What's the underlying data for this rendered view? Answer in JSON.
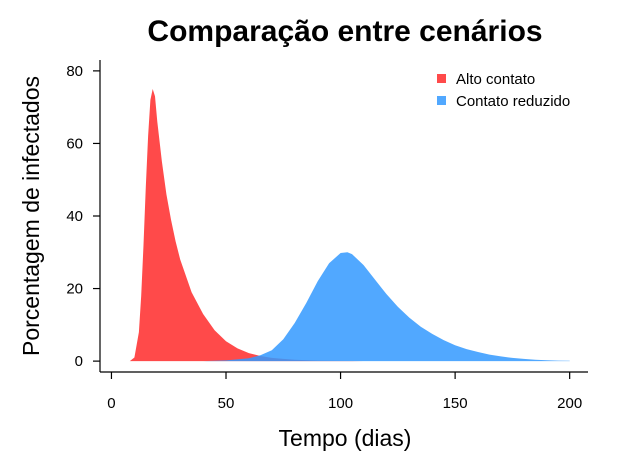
{
  "chart_data": {
    "type": "area",
    "title": "Comparação entre cenários",
    "xlabel": "Tempo (dias)",
    "ylabel": "Porcentagem de infectados",
    "xlim": [
      -5,
      208
    ],
    "ylim": [
      -3,
      83
    ],
    "xticks": [
      0,
      50,
      100,
      150,
      200
    ],
    "yticks": [
      0,
      20,
      40,
      60,
      80
    ],
    "legend_position": "top-right",
    "grid": false,
    "series": [
      {
        "name": "Alto contato",
        "color": "#ff2a2a",
        "opacity": 0.85,
        "x": [
          8,
          10,
          12,
          13,
          14,
          15,
          16,
          17,
          18,
          19,
          20,
          22,
          24,
          26,
          28,
          30,
          35,
          40,
          45,
          50,
          55,
          60,
          65,
          70,
          75,
          80,
          90,
          100,
          110
        ],
        "y": [
          0,
          1,
          8,
          18,
          32,
          48,
          62,
          72,
          75,
          73,
          66,
          55,
          46,
          39,
          33,
          28,
          19,
          13,
          8.5,
          5.5,
          3.5,
          2.2,
          1.4,
          0.9,
          0.6,
          0.4,
          0.15,
          0.05,
          0
        ]
      },
      {
        "name": "Contato reduzido",
        "color": "#3399ff",
        "opacity": 0.85,
        "x": [
          40,
          50,
          60,
          65,
          70,
          75,
          80,
          85,
          90,
          95,
          100,
          103,
          105,
          110,
          115,
          120,
          125,
          130,
          135,
          140,
          145,
          150,
          155,
          160,
          165,
          170,
          175,
          180,
          185,
          190,
          195,
          200
        ],
        "y": [
          0,
          0.2,
          0.8,
          1.6,
          3,
          6,
          10.5,
          16,
          22,
          27,
          29.8,
          30,
          29.5,
          26.5,
          22.5,
          18.5,
          15,
          12,
          9.5,
          7.5,
          5.8,
          4.4,
          3.3,
          2.5,
          1.8,
          1.3,
          0.9,
          0.6,
          0.4,
          0.25,
          0.15,
          0.1
        ]
      }
    ]
  }
}
